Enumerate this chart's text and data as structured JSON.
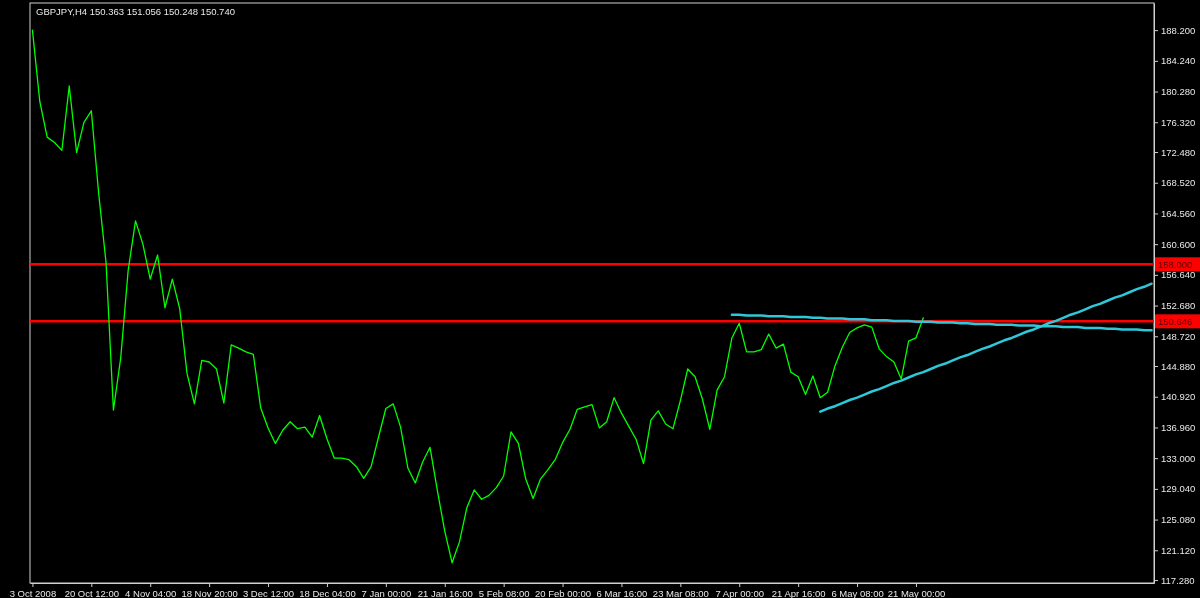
{
  "chart_data": {
    "type": "line",
    "title": "GBPJPY,H4  150.363 151.056 150.248 150.740",
    "categories": [
      "3 Oct 2008",
      null,
      null,
      null,
      null,
      null,
      null,
      null,
      "20 Oct 12:00",
      null,
      null,
      null,
      null,
      null,
      null,
      null,
      "4 Nov 04:00",
      null,
      null,
      null,
      null,
      null,
      null,
      null,
      "18 Nov 20:00",
      null,
      null,
      null,
      null,
      null,
      null,
      null,
      "3 Dec 12:00",
      null,
      null,
      null,
      null,
      null,
      null,
      null,
      "18 Dec 04:00",
      null,
      null,
      null,
      null,
      null,
      null,
      null,
      "7 Jan 00:00",
      null,
      null,
      null,
      null,
      null,
      null,
      null,
      "21 Jan 16:00",
      null,
      null,
      null,
      null,
      null,
      null,
      null,
      "5 Feb 08:00",
      null,
      null,
      null,
      null,
      null,
      null,
      null,
      "20 Feb 00:00",
      null,
      null,
      null,
      null,
      null,
      null,
      null,
      "6 Mar 16:00",
      null,
      null,
      null,
      null,
      null,
      null,
      null,
      "23 Mar 08:00",
      null,
      null,
      null,
      null,
      null,
      null,
      null,
      "7 Apr 00:00",
      null,
      null,
      null,
      null,
      null,
      null,
      null,
      "21 Apr 16:00",
      null,
      null,
      null,
      null,
      null,
      null,
      null,
      "6 May 08:00",
      null,
      null,
      null,
      null,
      null,
      null,
      null,
      "21 May 00:00",
      null,
      null,
      null,
      null,
      null,
      null,
      null,
      null,
      null,
      null,
      null,
      null,
      null,
      null,
      null,
      null,
      null,
      null,
      null,
      null,
      null,
      null,
      null,
      null,
      null,
      null,
      null,
      null,
      null,
      null,
      null,
      null
    ],
    "ylim": [
      116.9,
      191.7
    ],
    "yticks": [
      {
        "value": 117.28,
        "label": "117.280"
      },
      {
        "value": 121.12,
        "label": "121.120"
      },
      {
        "value": 125.08,
        "label": "125.080"
      },
      {
        "value": 129.04,
        "label": "129.040"
      },
      {
        "value": 133,
        "label": "133.000"
      },
      {
        "value": 136.96,
        "label": "136.960"
      },
      {
        "value": 140.92,
        "label": "140.920"
      },
      {
        "value": 144.88,
        "label": "144.880"
      },
      {
        "value": 148.72,
        "label": "148.720"
      },
      {
        "value": 152.68,
        "label": "152.680"
      },
      {
        "value": 156.64,
        "label": "156.640"
      },
      {
        "value": 160.6,
        "label": "160.600"
      },
      {
        "value": 164.56,
        "label": "164.560"
      },
      {
        "value": 168.52,
        "label": "168.520"
      },
      {
        "value": 172.48,
        "label": "172.480"
      },
      {
        "value": 176.32,
        "label": "176.320"
      },
      {
        "value": 180.28,
        "label": "180.280"
      },
      {
        "value": 184.24,
        "label": "184.240"
      },
      {
        "value": 188.2,
        "label": "188.200"
      }
    ],
    "grid": false,
    "series": [
      {
        "color": "#00ff00",
        "values": [
          188.2,
          179.0,
          174.4,
          173.7,
          172.7,
          181.0,
          172.4,
          176.3,
          177.8,
          167.1,
          158.2,
          139.2,
          146.0,
          157.2,
          163.6,
          160.6,
          156.1,
          159.2,
          152.4,
          156.1,
          152.3,
          143.9,
          140.0,
          145.6,
          145.4,
          144.5,
          140.1,
          147.6,
          147.2,
          146.7,
          146.4,
          139.5,
          136.9,
          134.9,
          136.6,
          137.7,
          136.8,
          137.0,
          135.7,
          138.5,
          135.5,
          133.0,
          133.0,
          132.8,
          131.9,
          130.4,
          131.9,
          135.7,
          139.4,
          140.0,
          137.0,
          131.7,
          129.8,
          132.5,
          134.4,
          128.8,
          123.6,
          119.5,
          122.2,
          126.6,
          128.9,
          127.7,
          128.2,
          129.2,
          130.7,
          136.4,
          134.9,
          130.3,
          127.8,
          130.3,
          131.5,
          132.8,
          135.0,
          136.7,
          139.3,
          139.6,
          139.9,
          136.9,
          137.7,
          140.8,
          138.8,
          137.1,
          135.4,
          132.3,
          137.9,
          139.1,
          137.4,
          136.8,
          140.4,
          144.5,
          143.5,
          140.6,
          136.7,
          141.8,
          143.5,
          148.5,
          150.4,
          146.7,
          146.7,
          147.0,
          149.0,
          147.2,
          147.7,
          144.1,
          143.5,
          141.2,
          143.6,
          140.8,
          141.5,
          144.9,
          147.3,
          149.2,
          149.8,
          150.2,
          149.9,
          147.1,
          146.1,
          145.4,
          143.2,
          148.1,
          148.5,
          151.1,
          null,
          null,
          null,
          null,
          null,
          null,
          null,
          null,
          null,
          null,
          null,
          null,
          null,
          null,
          null,
          null,
          null,
          null,
          null,
          null,
          null,
          null,
          null,
          null,
          null,
          null,
          null,
          null,
          null,
          null,
          null
        ]
      },
      {
        "type": "line",
        "color": "#2ec8d8",
        "values": [
          null,
          null,
          null,
          null,
          null,
          null,
          null,
          null,
          null,
          null,
          null,
          null,
          null,
          null,
          null,
          null,
          null,
          null,
          null,
          null,
          null,
          null,
          null,
          null,
          null,
          null,
          null,
          null,
          null,
          null,
          null,
          null,
          null,
          null,
          null,
          null,
          null,
          null,
          null,
          null,
          null,
          null,
          null,
          null,
          null,
          null,
          null,
          null,
          null,
          null,
          null,
          null,
          null,
          null,
          null,
          null,
          null,
          null,
          null,
          null,
          null,
          null,
          null,
          null,
          null,
          null,
          null,
          null,
          null,
          null,
          null,
          null,
          null,
          null,
          null,
          null,
          null,
          null,
          null,
          null,
          null,
          null,
          null,
          null,
          null,
          null,
          null,
          null,
          null,
          null,
          null,
          null,
          null,
          null,
          null,
          151.5,
          151.5,
          151.4,
          151.4,
          151.4,
          151.3,
          151.3,
          151.3,
          151.2,
          151.2,
          151.2,
          151.1,
          151.1,
          151.0,
          151.0,
          151.0,
          150.9,
          150.9,
          150.9,
          150.8,
          150.8,
          150.8,
          150.7,
          150.7,
          150.7,
          150.6,
          150.6,
          150.6,
          150.5,
          150.5,
          150.5,
          150.4,
          150.4,
          150.3,
          150.3,
          150.3,
          150.2,
          150.2,
          150.2,
          150.1,
          150.1,
          150.1,
          150.0,
          150.0,
          150.0,
          149.9,
          149.9,
          149.9,
          149.8,
          149.8,
          149.8,
          149.7,
          149.7,
          149.6,
          149.6,
          149.6,
          149.5,
          149.5
        ]
      },
      {
        "type": "line",
        "color": "#2ec8d8",
        "values": [
          null,
          null,
          null,
          null,
          null,
          null,
          null,
          null,
          null,
          null,
          null,
          null,
          null,
          null,
          null,
          null,
          null,
          null,
          null,
          null,
          null,
          null,
          null,
          null,
          null,
          null,
          null,
          null,
          null,
          null,
          null,
          null,
          null,
          null,
          null,
          null,
          null,
          null,
          null,
          null,
          null,
          null,
          null,
          null,
          null,
          null,
          null,
          null,
          null,
          null,
          null,
          null,
          null,
          null,
          null,
          null,
          null,
          null,
          null,
          null,
          null,
          null,
          null,
          null,
          null,
          null,
          null,
          null,
          null,
          null,
          null,
          null,
          null,
          null,
          null,
          null,
          null,
          null,
          null,
          null,
          null,
          null,
          null,
          null,
          null,
          null,
          null,
          null,
          null,
          null,
          null,
          null,
          null,
          null,
          null,
          null,
          null,
          null,
          null,
          null,
          null,
          null,
          null,
          null,
          null,
          null,
          null,
          139.0,
          139.4,
          139.7,
          140.1,
          140.5,
          140.8,
          141.2,
          141.6,
          141.9,
          142.3,
          142.7,
          143.0,
          143.4,
          143.8,
          144.1,
          144.5,
          144.9,
          145.2,
          145.6,
          146.0,
          146.3,
          146.7,
          147.1,
          147.4,
          147.8,
          148.2,
          148.5,
          148.9,
          149.3,
          149.6,
          150.0,
          150.4,
          150.7,
          151.1,
          151.5,
          151.8,
          152.2,
          152.6,
          152.9,
          153.3,
          153.7,
          154.0,
          154.4,
          154.8,
          155.1,
          155.5
        ]
      }
    ],
    "ref_lines": [
      {
        "axis": "y",
        "value": 158.0,
        "label": "158.000",
        "color": "#ff0000"
      },
      {
        "axis": "y",
        "value": 150.646,
        "label": "150.646",
        "color": "#ff0000"
      }
    ]
  }
}
